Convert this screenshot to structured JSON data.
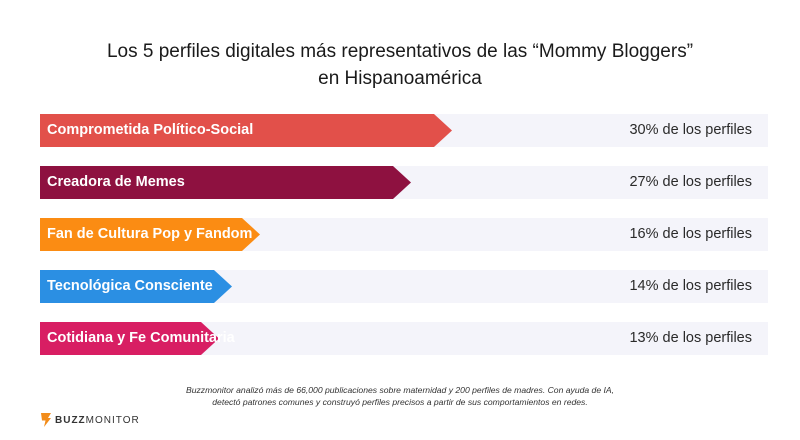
{
  "title_line1": "Los 5 perfiles digitales más representativos de las “Mommy Bloggers”",
  "title_line2": "en Hispanoamérica",
  "chart_data": {
    "type": "bar",
    "orientation": "horizontal",
    "categories": [
      "Comprometida Político-Social",
      "Creadora de Memes",
      "Fan de Cultura Pop y Fandom",
      "Tecnológica Consciente",
      "Cotidiana y Fe Comunitaria"
    ],
    "values": [
      30,
      27,
      16,
      14,
      13
    ],
    "value_labels": [
      "30% de los perfiles",
      "27% de los perfiles",
      "16% de los perfiles",
      "14% de los perfiles",
      "13% de los perfiles"
    ],
    "colors": [
      "#e2504a",
      "#8e1140",
      "#fb8c13",
      "#2b8fe3",
      "#d81e63"
    ],
    "unit": "%",
    "xlim": [
      0,
      53
    ]
  },
  "footnote_line1": "Buzzmonitor analizó más de 66,000 publicaciones sobre maternidad y 200 perfiles de madres. Con ayuda de IA,",
  "footnote_line2": "detectó patrones comunes y construyó perfiles precisos a partir de sus comportamientos en redes.",
  "logo": {
    "bold": "BUZZ",
    "regular": "MONITOR",
    "icon": "buzzmonitor-logo-icon",
    "color": "#f28c1a"
  }
}
